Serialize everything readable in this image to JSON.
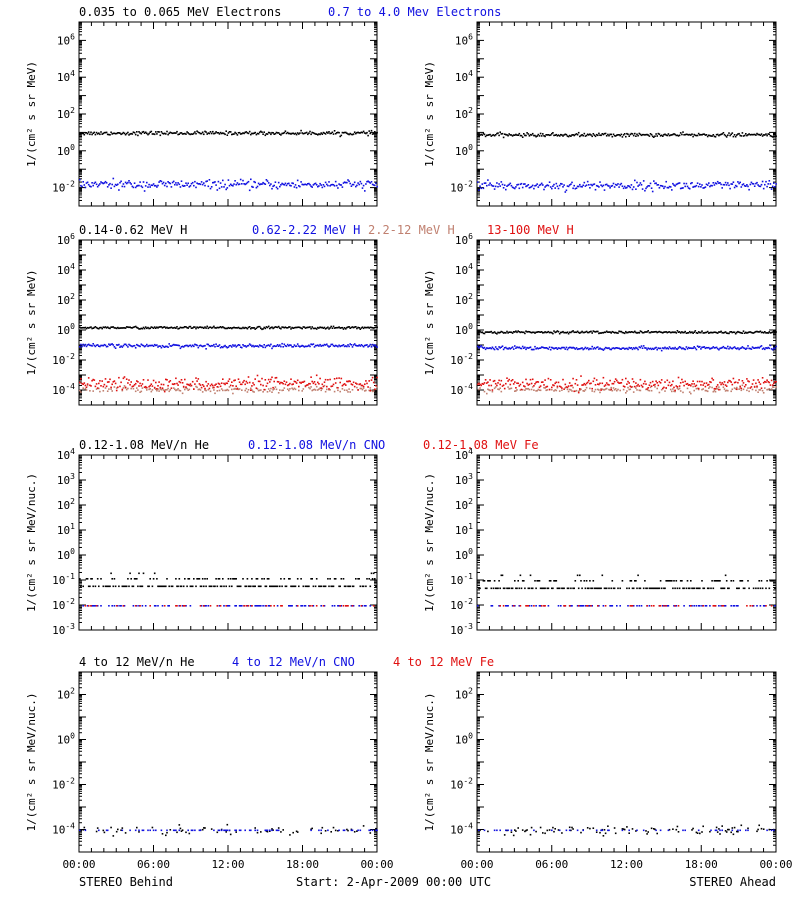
{
  "chart_data": {
    "type": "scatter",
    "start_label": "Start:  2-Apr-2009 00:00 UTC",
    "left_label": "STEREO Behind",
    "right_label": "STEREO Ahead",
    "x_ticks": [
      "00:00",
      "06:00",
      "12:00",
      "18:00",
      "00:00"
    ],
    "x_range_hours": [
      0,
      24
    ],
    "y_scale": "log",
    "colors": {
      "black": "#000000",
      "blue": "#1010e0",
      "tan": "#c08070",
      "red": "#e01010"
    },
    "rows": [
      {
        "ylabel": "1/(cm² s sr MeV)",
        "ylim_log": [
          -3,
          7
        ],
        "y_ticks": [
          -2,
          0,
          2,
          4,
          6
        ],
        "legend": [
          {
            "text": "0.035 to 0.065 MeV Electrons",
            "color": "#000000"
          },
          {
            "text": "0.7 to 4.0 Mev Electrons",
            "color": "#1010e0"
          }
        ],
        "series": [
          {
            "color": "#000000",
            "median": [
              10,
              8
            ],
            "spread_dex": 0.05,
            "density": 1.0
          },
          {
            "color": "#1010e0",
            "median": [
              0.016,
              0.014
            ],
            "spread_dex": 0.12,
            "density": 1.0
          }
        ]
      },
      {
        "ylabel": "1/(cm² s sr MeV)",
        "ylim_log": [
          -5,
          6
        ],
        "y_ticks": [
          -4,
          -2,
          0,
          2,
          4,
          6
        ],
        "legend": [
          {
            "text": "0.14-0.62 MeV H",
            "color": "#000000"
          },
          {
            "text": "0.62-2.22 MeV H",
            "color": "#1010e0"
          },
          {
            "text": "2.2-12 MeV H",
            "color": "#c08070"
          },
          {
            "text": "13-100 MeV H",
            "color": "#e01010"
          }
        ],
        "series": [
          {
            "color": "#000000",
            "median": [
              1.6,
              0.8
            ],
            "spread_dex": 0.04,
            "density": 1.0
          },
          {
            "color": "#1010e0",
            "median": [
              0.1,
              0.07
            ],
            "spread_dex": 0.06,
            "density": 1.0
          },
          {
            "color": "#c08070",
            "median": [
              0.00012,
              0.00012
            ],
            "spread_dex": 0.1,
            "density": 0.7
          },
          {
            "color": "#e01010",
            "median": [
              0.0003,
              0.0003
            ],
            "spread_dex": 0.2,
            "density": 1.0
          }
        ]
      },
      {
        "ylabel": "1/(cm² s sr MeV/nuc.)",
        "ylim_log": [
          -3,
          4
        ],
        "y_ticks": [
          -3,
          -2,
          -1,
          0,
          1,
          2,
          3,
          4
        ],
        "legend": [
          {
            "text": "0.12-1.08 MeV/n He",
            "color": "#000000"
          },
          {
            "text": "0.12-1.08 MeV/n CNO",
            "color": "#1010e0"
          },
          {
            "text": "0.12-1.08 MeV Fe",
            "color": "#e01010"
          }
        ],
        "series": [
          {
            "color": "#000000",
            "median": [
              0.06,
              0.05
            ],
            "spread_dex": 0.3,
            "density": 0.8
          },
          {
            "color": "#1010e0",
            "median": [
              0.01,
              0.01
            ],
            "spread_dex": 0.0,
            "density": 0.35
          },
          {
            "color": "#e01010",
            "median": [
              0.01,
              0.01
            ],
            "spread_dex": 0.0,
            "density": 0.15
          }
        ]
      },
      {
        "ylabel": "1/(cm² s sr MeV/nuc.)",
        "ylim_log": [
          -5,
          3
        ],
        "y_ticks": [
          -4,
          -2,
          0,
          2
        ],
        "legend": [
          {
            "text": "4 to 12 MeV/n He",
            "color": "#000000"
          },
          {
            "text": "4 to 12 MeV/n CNO",
            "color": "#1010e0"
          },
          {
            "text": "4 to 12 MeV Fe",
            "color": "#e01010"
          }
        ],
        "series": [
          {
            "color": "#000000",
            "median": [
              0.0001,
              0.0001
            ],
            "spread_dex": 0.1,
            "density": 0.3
          },
          {
            "color": "#1010e0",
            "median": [
              0.0001,
              0.0001
            ],
            "spread_dex": 0.0,
            "density": 0.2
          }
        ]
      }
    ]
  }
}
